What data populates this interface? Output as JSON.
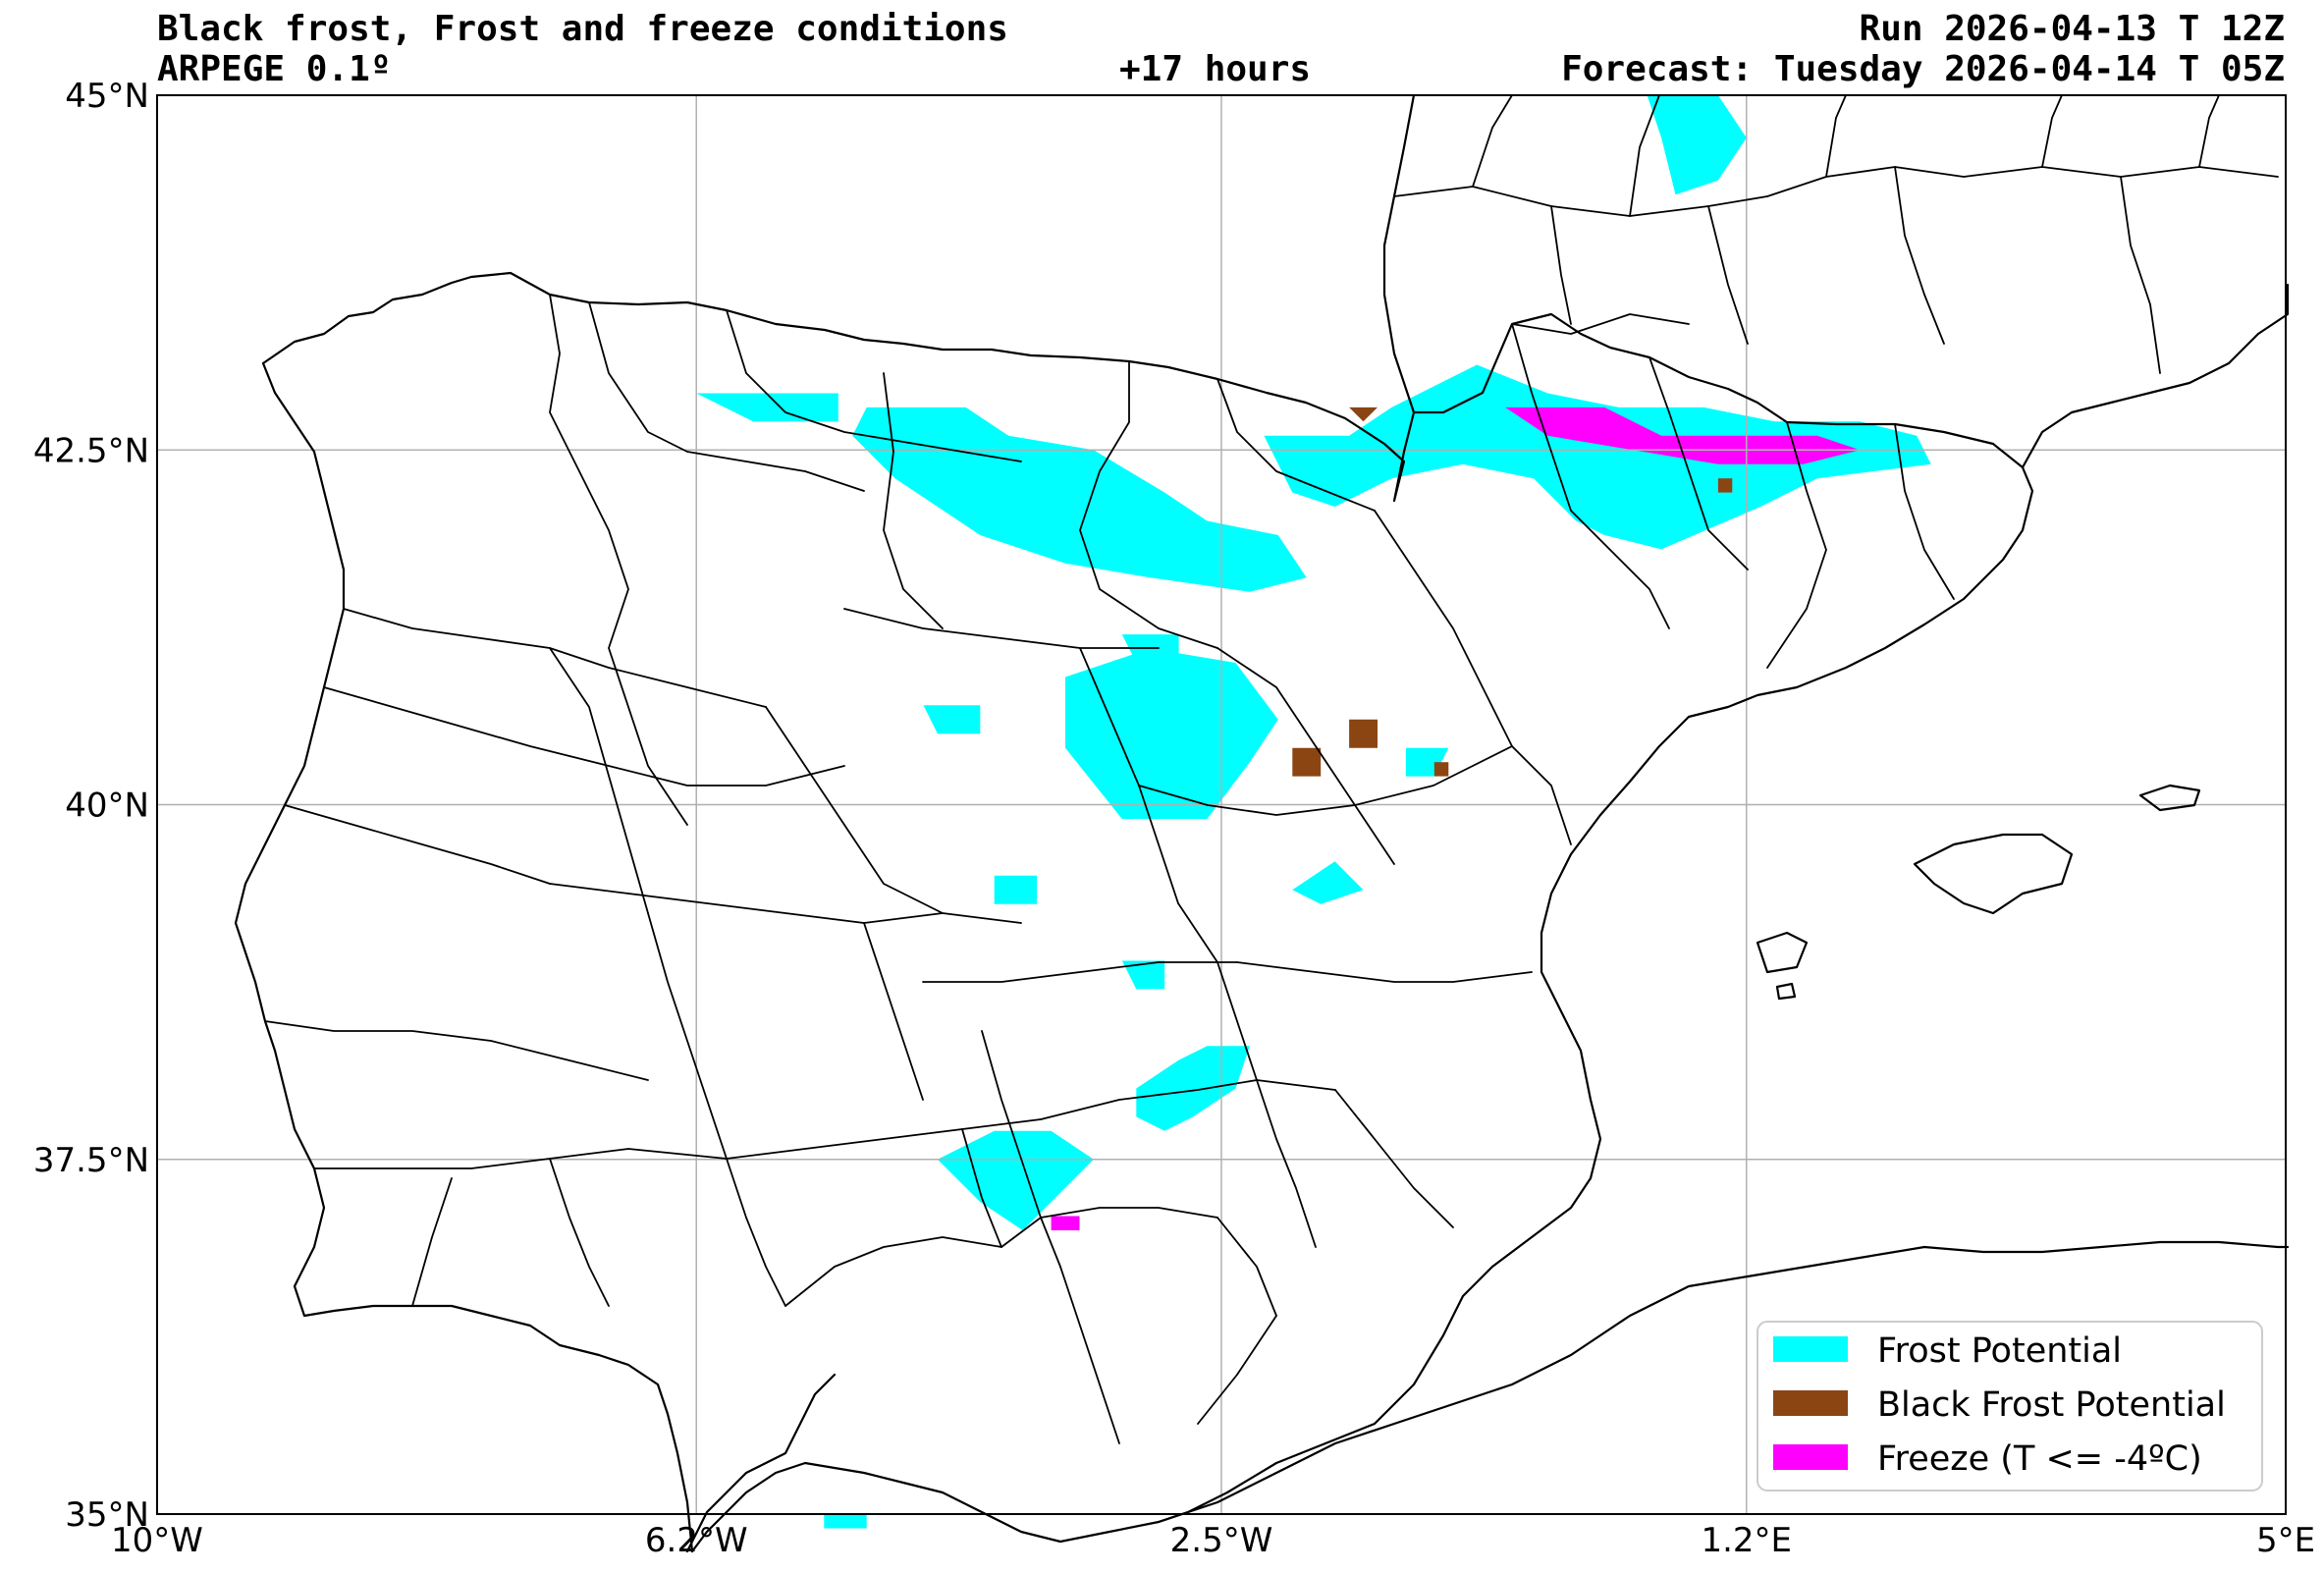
{
  "header": {
    "title": "Black frost, Frost and freeze conditions",
    "model": "ARPEGE 0.1º",
    "lead": "+17 hours",
    "run": "Run 2026-04-13 T 12Z",
    "forecast": "Forecast: Tuesday 2026-04-14 T 05Z"
  },
  "axes": {
    "lon_range": [
      -10,
      5
    ],
    "lat_range": [
      35,
      45
    ],
    "x_ticks": [
      {
        "value": -10,
        "label": "10°W"
      },
      {
        "value": -6.2,
        "label": "6.2°W"
      },
      {
        "value": -2.5,
        "label": "2.5°W"
      },
      {
        "value": 1.2,
        "label": "1.2°E"
      },
      {
        "value": 5,
        "label": "5°E"
      }
    ],
    "y_ticks": [
      {
        "value": 45,
        "label": "45°N"
      },
      {
        "value": 42.5,
        "label": "42.5°N"
      },
      {
        "value": 40,
        "label": "40°N"
      },
      {
        "value": 37.5,
        "label": "37.5°N"
      },
      {
        "value": 35,
        "label": "35°N"
      }
    ],
    "grid": true
  },
  "legend": {
    "placement": "lower-right",
    "items": [
      {
        "label": "Frost Potential",
        "color": "#00ffff"
      },
      {
        "label": "Black Frost Potential",
        "color": "#8b4513"
      },
      {
        "label": "Freeze (T <= -4ºC)",
        "color": "#ff00ff"
      }
    ]
  },
  "colors": {
    "frost": "#00ffff",
    "black_frost": "#8b4513",
    "freeze": "#ff00ff"
  },
  "areas": {
    "frost": [
      [
        [
          -5,
          42.8
        ],
        [
          -4.3,
          42.8
        ],
        [
          -4.0,
          42.6
        ],
        [
          -3.4,
          42.5
        ],
        [
          -2.9,
          42.2
        ],
        [
          -2.6,
          42.0
        ],
        [
          -2.1,
          41.9
        ],
        [
          -1.9,
          41.6
        ],
        [
          -2.3,
          41.5
        ],
        [
          -3.0,
          41.6
        ],
        [
          -3.6,
          41.7
        ],
        [
          -4.2,
          41.9
        ],
        [
          -4.8,
          42.3
        ],
        [
          -5.1,
          42.6
        ]
      ],
      [
        [
          -6.2,
          42.9
        ],
        [
          -5.2,
          42.9
        ],
        [
          -5.2,
          42.7
        ],
        [
          -5.8,
          42.7
        ]
      ],
      [
        [
          -2.2,
          42.6
        ],
        [
          -1.6,
          42.6
        ],
        [
          -1.3,
          42.8
        ],
        [
          -0.7,
          43.1
        ],
        [
          -0.2,
          42.9
        ],
        [
          0.3,
          42.8
        ],
        [
          0.9,
          42.8
        ],
        [
          1.4,
          42.7
        ],
        [
          2.0,
          42.7
        ],
        [
          2.4,
          42.6
        ],
        [
          2.5,
          42.4
        ],
        [
          1.7,
          42.3
        ],
        [
          1.3,
          42.1
        ],
        [
          0.6,
          41.8
        ],
        [
          0.2,
          41.9
        ],
        [
          0.0,
          42.0
        ],
        [
          -0.3,
          42.3
        ],
        [
          -0.8,
          42.4
        ],
        [
          -1.3,
          42.3
        ],
        [
          -1.7,
          42.1
        ],
        [
          -2.0,
          42.2
        ]
      ],
      [
        [
          -3.6,
          40.9
        ],
        [
          -3.0,
          41.1
        ],
        [
          -2.4,
          41.0
        ],
        [
          -2.1,
          40.6
        ],
        [
          -2.3,
          40.3
        ],
        [
          -2.6,
          39.9
        ],
        [
          -3.2,
          39.9
        ],
        [
          -3.6,
          40.4
        ]
      ],
      [
        [
          -3.2,
          38.9
        ],
        [
          -2.9,
          38.9
        ],
        [
          -2.9,
          38.7
        ],
        [
          -3.1,
          38.7
        ]
      ],
      [
        [
          -3.1,
          38.0
        ],
        [
          -2.8,
          38.2
        ],
        [
          -2.6,
          38.3
        ],
        [
          -2.3,
          38.3
        ],
        [
          -2.4,
          38.0
        ],
        [
          -2.7,
          37.8
        ],
        [
          -2.9,
          37.7
        ],
        [
          -3.1,
          37.8
        ]
      ],
      [
        [
          -4.5,
          37.5
        ],
        [
          -4.1,
          37.7
        ],
        [
          -3.7,
          37.7
        ],
        [
          -3.4,
          37.5
        ],
        [
          -3.6,
          37.3
        ],
        [
          -3.9,
          37.0
        ],
        [
          -4.2,
          37.2
        ]
      ],
      [
        [
          -3.2,
          41.2
        ],
        [
          -2.8,
          41.2
        ],
        [
          -2.8,
          41.0
        ],
        [
          -3.1,
          41.0
        ]
      ],
      [
        [
          -2.0,
          39.4
        ],
        [
          -1.7,
          39.6
        ],
        [
          -1.5,
          39.4
        ],
        [
          -1.8,
          39.3
        ]
      ],
      [
        [
          -4.1,
          39.5
        ],
        [
          -3.8,
          39.5
        ],
        [
          -3.8,
          39.3
        ],
        [
          -4.1,
          39.3
        ]
      ],
      [
        [
          -4.6,
          40.7
        ],
        [
          -4.2,
          40.7
        ],
        [
          -4.2,
          40.5
        ],
        [
          -4.5,
          40.5
        ]
      ],
      [
        [
          -1.2,
          40.4
        ],
        [
          -0.9,
          40.4
        ],
        [
          -1.0,
          40.2
        ],
        [
          -1.2,
          40.2
        ]
      ],
      [
        [
          0.5,
          45.0
        ],
        [
          1.0,
          45.0
        ],
        [
          1.2,
          44.7
        ],
        [
          1.0,
          44.4
        ],
        [
          0.7,
          44.3
        ],
        [
          0.6,
          44.7
        ]
      ],
      [
        [
          -5.3,
          35.0
        ],
        [
          -5.0,
          35.0
        ],
        [
          -5.0,
          34.9
        ],
        [
          -5.3,
          34.9
        ]
      ]
    ],
    "black_frost": [
      [
        [
          -1.6,
          40.6
        ],
        [
          -1.4,
          40.6
        ],
        [
          -1.4,
          40.4
        ],
        [
          -1.6,
          40.4
        ]
      ],
      [
        [
          -2.0,
          40.4
        ],
        [
          -1.8,
          40.4
        ],
        [
          -1.8,
          40.2
        ],
        [
          -2.0,
          40.2
        ]
      ],
      [
        [
          -1.0,
          40.3
        ],
        [
          -0.9,
          40.3
        ],
        [
          -0.9,
          40.2
        ],
        [
          -1.0,
          40.2
        ]
      ],
      [
        [
          -1.6,
          42.8
        ],
        [
          -1.4,
          42.8
        ],
        [
          -1.5,
          42.7
        ]
      ],
      [
        [
          1.0,
          42.3
        ],
        [
          1.1,
          42.3
        ],
        [
          1.1,
          42.2
        ],
        [
          1.0,
          42.2
        ]
      ]
    ],
    "freeze": [
      [
        [
          -0.5,
          42.8
        ],
        [
          0.2,
          42.8
        ],
        [
          0.6,
          42.6
        ],
        [
          1.2,
          42.6
        ],
        [
          1.7,
          42.6
        ],
        [
          2.0,
          42.5
        ],
        [
          1.6,
          42.4
        ],
        [
          1.0,
          42.4
        ],
        [
          0.4,
          42.5
        ],
        [
          -0.2,
          42.6
        ]
      ],
      [
        [
          -3.7,
          37.1
        ],
        [
          -3.5,
          37.1
        ],
        [
          -3.5,
          37.0
        ],
        [
          -3.7,
          37.0
        ]
      ]
    ]
  }
}
